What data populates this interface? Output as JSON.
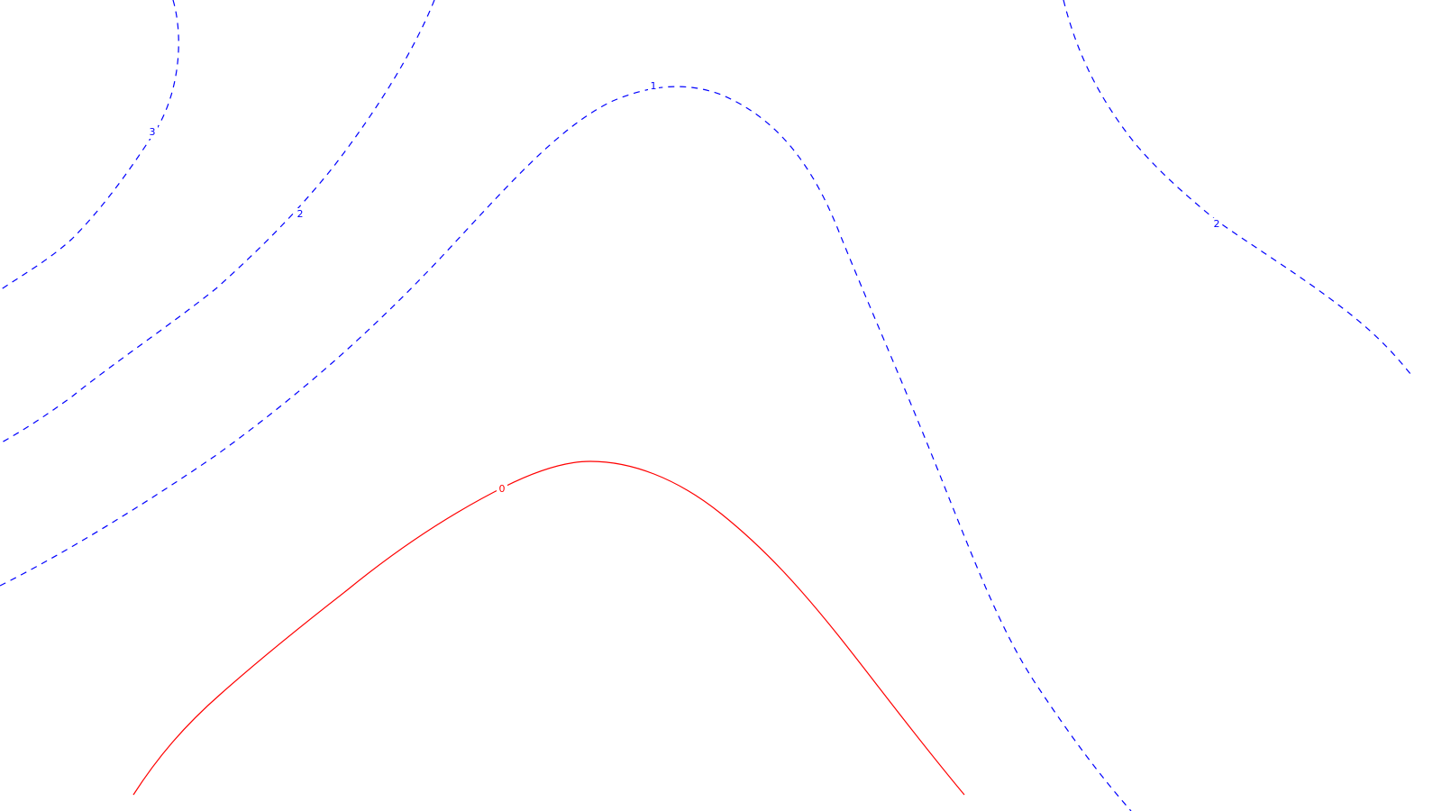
{
  "map": {
    "background": "#ffffff",
    "negative_color": "#0000ff",
    "zero_color": "#ff0000",
    "contours": [
      {
        "id": "contour-3",
        "level": "3",
        "style": "dashed",
        "color": "#0000ff"
      },
      {
        "id": "contour-2-left",
        "level": "2",
        "style": "dashed",
        "color": "#0000ff"
      },
      {
        "id": "contour-1",
        "level": "1",
        "style": "dashed",
        "color": "#0000ff"
      },
      {
        "id": "contour-2-right",
        "level": "2",
        "style": "dashed",
        "color": "#0000ff"
      },
      {
        "id": "contour-0",
        "level": "0",
        "style": "solid",
        "color": "#ff0000"
      }
    ]
  }
}
